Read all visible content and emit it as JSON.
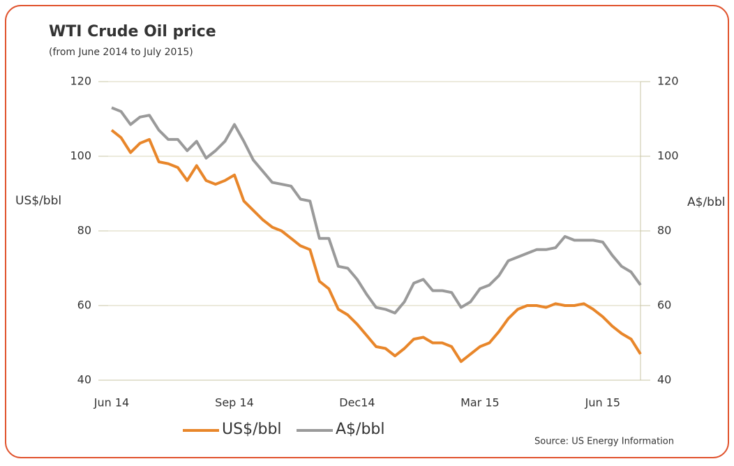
{
  "chart_data": {
    "type": "line",
    "title": "WTI Crude Oil price",
    "subtitle": "(from June 2014 to July 2015)",
    "y_label": "US$/bbl",
    "y2_label": "A$/bbl",
    "source": "Source: US Energy Information",
    "categories": [
      "Jun 14",
      null,
      null,
      null,
      null,
      null,
      null,
      null,
      null,
      null,
      null,
      null,
      null,
      "Sep 14",
      null,
      null,
      null,
      null,
      null,
      null,
      null,
      null,
      null,
      null,
      null,
      null,
      "Dec14",
      null,
      null,
      null,
      null,
      null,
      null,
      null,
      null,
      null,
      null,
      null,
      null,
      "Mar 15",
      null,
      null,
      null,
      null,
      null,
      null,
      null,
      null,
      null,
      null,
      null,
      null,
      "Jun 15",
      null,
      null,
      null,
      null
    ],
    "ylim": [
      40,
      120
    ],
    "yticks": [
      40,
      60,
      80,
      100,
      120
    ],
    "y2lim": [
      40,
      120
    ],
    "y2ticks": [
      40,
      60,
      80,
      100,
      120
    ],
    "grid": true,
    "series": [
      {
        "name": "US$/bbl",
        "color": "#e8862a",
        "values": [
          107,
          105,
          101,
          103.5,
          104.5,
          98.5,
          98,
          97,
          93.5,
          97.5,
          93.5,
          92.5,
          93.5,
          95,
          88,
          85.5,
          83,
          81,
          80,
          78,
          76,
          75,
          66.5,
          64.5,
          59,
          57.5,
          55,
          52,
          49,
          48.5,
          46.5,
          48.5,
          51,
          51.5,
          50,
          50,
          49,
          45,
          47,
          49,
          50,
          53,
          56.5,
          59,
          60,
          60,
          59.5,
          60.5,
          60,
          60,
          60.5,
          59,
          57,
          54.5,
          52.5,
          51,
          47
        ]
      },
      {
        "name": "A$/bbl",
        "color": "#9a9a9a",
        "axis": "y2",
        "values": [
          113,
          112,
          108.5,
          110.5,
          111,
          107,
          104.5,
          104.5,
          101.5,
          104,
          99.5,
          101.5,
          104,
          108.5,
          104,
          99,
          96,
          93,
          92.5,
          92,
          88.5,
          88,
          78,
          78,
          70.5,
          70,
          67,
          63,
          59.5,
          59,
          58,
          61,
          66,
          67,
          64,
          64,
          63.5,
          59.5,
          61,
          64.5,
          65.5,
          68,
          72,
          73,
          74,
          75,
          75,
          75.5,
          78.5,
          77.5,
          77.5,
          77.5,
          77,
          73.5,
          70.5,
          69,
          65.5
        ]
      }
    ]
  }
}
